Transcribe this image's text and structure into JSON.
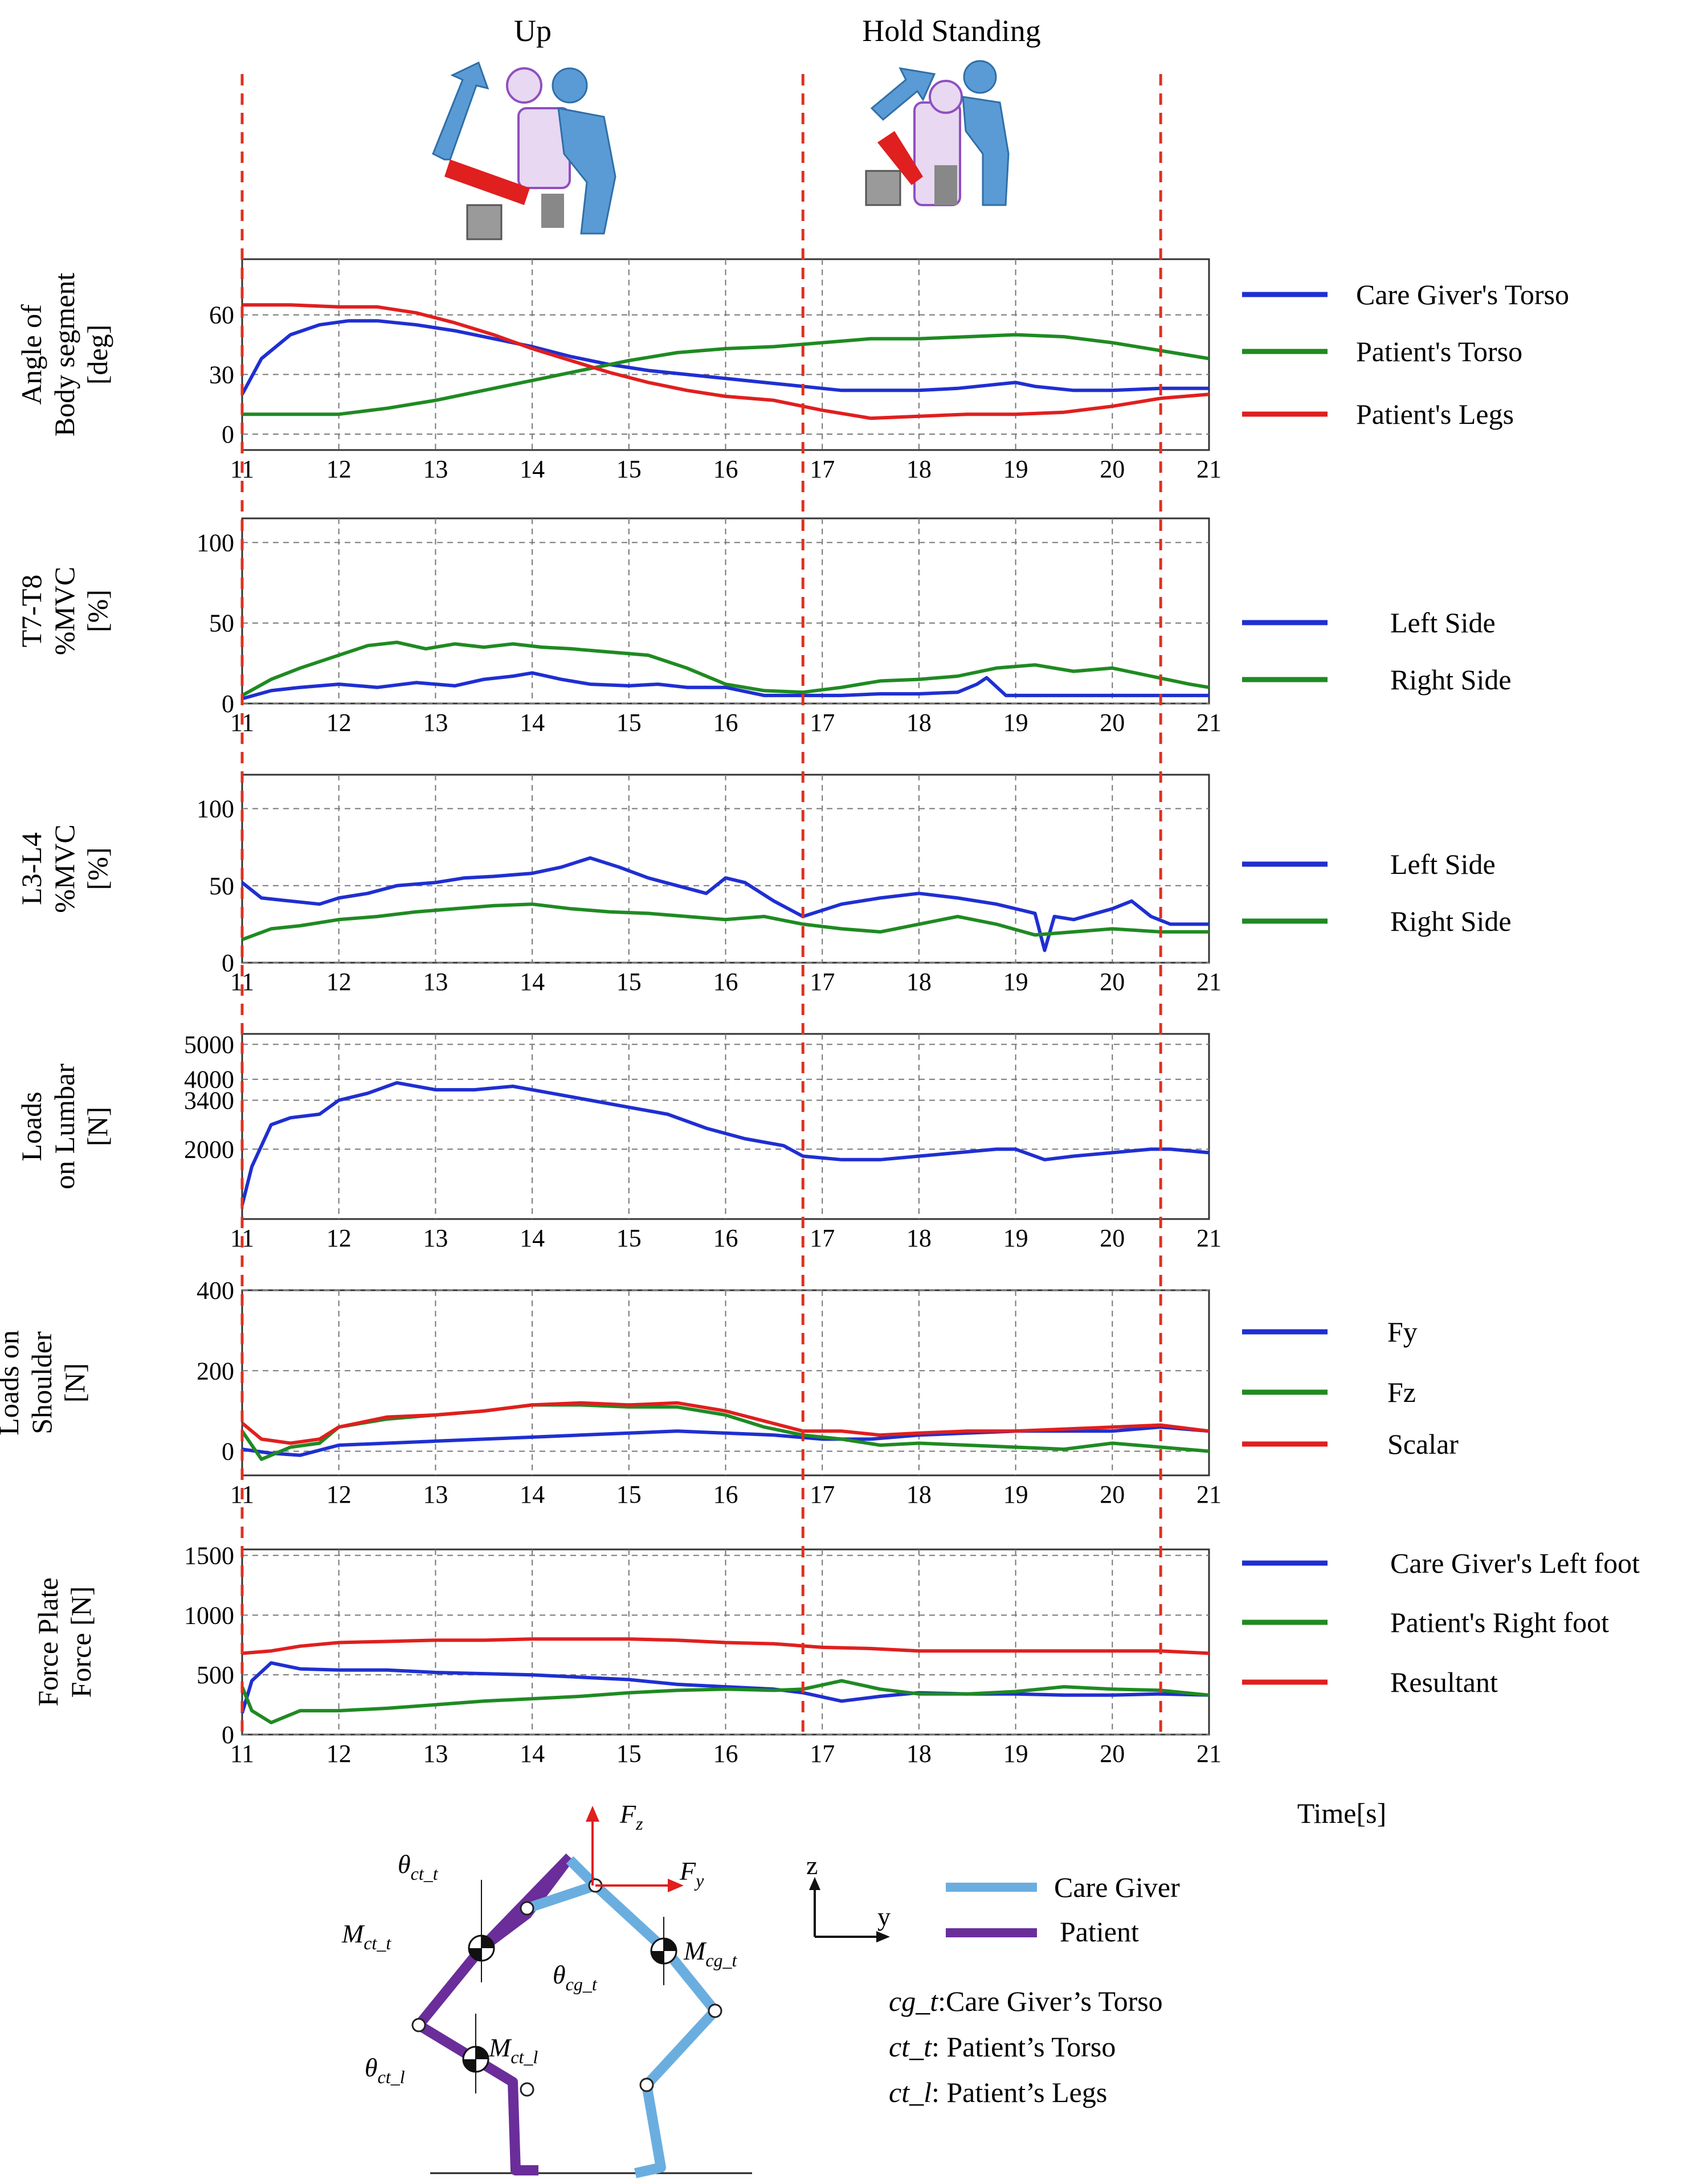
{
  "phases": {
    "up": "Up",
    "hold": "Hold Standing"
  },
  "markers": [
    11.0,
    16.8,
    20.5
  ],
  "x_axis": {
    "min": 11,
    "max": 21,
    "ticks": [
      "11",
      "12",
      "13",
      "14",
      "15",
      "16",
      "17",
      "18",
      "19",
      "20",
      "21"
    ],
    "label": "Time[s]"
  },
  "colors": {
    "blue": "#1f2fd1",
    "green": "#1f8a22",
    "red": "#e01f1f",
    "marker": "#e03020",
    "cg_blue": "#6aaee0",
    "pt_purple": "#6a2d9a"
  },
  "chart_data": [
    {
      "type": "line",
      "id": "angle",
      "ylabel": [
        "Angle of",
        "Body segment",
        "[deg]"
      ],
      "ylim": [
        -8,
        88
      ],
      "yticks": [
        "0",
        "30",
        "60"
      ],
      "yticks_values": [
        0,
        30,
        60
      ],
      "grid": true,
      "series": [
        {
          "name": "Care Giver's Torso",
          "color": "blue",
          "x": [
            11,
            11.2,
            11.5,
            11.8,
            12.1,
            12.4,
            12.8,
            13.2,
            13.6,
            14,
            14.4,
            14.8,
            15.2,
            15.6,
            16,
            16.4,
            16.8,
            17.2,
            17.6,
            18,
            18.4,
            18.8,
            19,
            19.2,
            19.6,
            20,
            20.5,
            21
          ],
          "y": [
            20,
            38,
            50,
            55,
            57,
            57,
            55,
            52,
            48,
            44,
            39,
            35,
            32,
            30,
            28,
            26,
            24,
            22,
            22,
            22,
            23,
            25,
            26,
            24,
            22,
            22,
            23,
            23
          ]
        },
        {
          "name": "Patient's Torso",
          "color": "green",
          "x": [
            11,
            11.5,
            12,
            12.5,
            13,
            13.5,
            14,
            14.5,
            15,
            15.5,
            16,
            16.5,
            17,
            17.5,
            18,
            18.5,
            19,
            19.5,
            20,
            20.5,
            21
          ],
          "y": [
            10,
            10,
            10,
            13,
            17,
            22,
            27,
            32,
            37,
            41,
            43,
            44,
            46,
            48,
            48,
            49,
            50,
            49,
            46,
            42,
            38
          ]
        },
        {
          "name": "Patient's Legs",
          "color": "red",
          "x": [
            11,
            11.5,
            12,
            12.4,
            12.8,
            13.2,
            13.6,
            14,
            14.4,
            14.8,
            15.2,
            15.6,
            16,
            16.5,
            17,
            17.5,
            18,
            18.5,
            19,
            19.5,
            20,
            20.5,
            21
          ],
          "y": [
            65,
            65,
            64,
            64,
            61,
            56,
            50,
            43,
            37,
            31,
            26,
            22,
            19,
            17,
            12,
            8,
            9,
            10,
            10,
            11,
            14,
            18,
            20
          ]
        }
      ]
    },
    {
      "type": "line",
      "id": "t7t8",
      "ylabel": [
        "T7-T8",
        "%MVC",
        "[%]"
      ],
      "ylim": [
        0,
        115
      ],
      "yticks": [
        "0",
        "50",
        "100"
      ],
      "yticks_values": [
        0,
        50,
        100
      ],
      "grid": true,
      "series": [
        {
          "name": "Left Side",
          "color": "blue",
          "x": [
            11,
            11.3,
            11.6,
            12,
            12.4,
            12.8,
            13.2,
            13.5,
            13.8,
            14,
            14.3,
            14.6,
            15,
            15.3,
            15.6,
            16,
            16.4,
            16.8,
            17.2,
            17.6,
            18,
            18.4,
            18.6,
            18.7,
            18.9,
            19.2,
            19.6,
            20,
            20.5,
            21
          ],
          "y": [
            3,
            8,
            10,
            12,
            10,
            13,
            11,
            15,
            17,
            19,
            15,
            12,
            11,
            12,
            10,
            10,
            5,
            5,
            5,
            6,
            6,
            7,
            12,
            16,
            5,
            5,
            5,
            5,
            5,
            5
          ]
        },
        {
          "name": "Right Side",
          "color": "green",
          "x": [
            11,
            11.3,
            11.6,
            12,
            12.3,
            12.6,
            12.9,
            13.2,
            13.5,
            13.8,
            14.1,
            14.4,
            14.8,
            15.2,
            15.6,
            16,
            16.4,
            16.8,
            17.2,
            17.6,
            18,
            18.4,
            18.8,
            19.2,
            19.6,
            20,
            20.4,
            20.8,
            21
          ],
          "y": [
            5,
            15,
            22,
            30,
            36,
            38,
            34,
            37,
            35,
            37,
            35,
            34,
            32,
            30,
            22,
            12,
            8,
            7,
            10,
            14,
            15,
            17,
            22,
            24,
            20,
            22,
            17,
            12,
            10
          ]
        }
      ]
    },
    {
      "type": "line",
      "id": "l3l4",
      "ylabel": [
        "L3-L4",
        "%MVC",
        "[%]"
      ],
      "ylim": [
        0,
        122
      ],
      "yticks": [
        "0",
        "50",
        "100"
      ],
      "yticks_values": [
        0,
        50,
        100
      ],
      "grid": true,
      "series": [
        {
          "name": "Left Side",
          "color": "blue",
          "x": [
            11,
            11.2,
            11.5,
            11.8,
            12,
            12.3,
            12.6,
            13,
            13.3,
            13.6,
            14,
            14.3,
            14.6,
            14.9,
            15.2,
            15.5,
            15.8,
            16,
            16.2,
            16.5,
            16.8,
            17.2,
            17.6,
            18,
            18.4,
            18.8,
            19.2,
            19.3,
            19.4,
            19.6,
            20,
            20.2,
            20.4,
            20.6,
            21
          ],
          "y": [
            52,
            42,
            40,
            38,
            42,
            45,
            50,
            52,
            55,
            56,
            58,
            62,
            68,
            62,
            55,
            50,
            45,
            55,
            52,
            40,
            30,
            38,
            42,
            45,
            42,
            38,
            32,
            8,
            30,
            28,
            35,
            40,
            30,
            25,
            25
          ]
        },
        {
          "name": "Right Side",
          "color": "green",
          "x": [
            11,
            11.3,
            11.6,
            12,
            12.4,
            12.8,
            13.2,
            13.6,
            14,
            14.4,
            14.8,
            15.2,
            15.6,
            16,
            16.4,
            16.8,
            17.2,
            17.6,
            18,
            18.4,
            18.8,
            19.2,
            19.6,
            20,
            20.5,
            21
          ],
          "y": [
            15,
            22,
            24,
            28,
            30,
            33,
            35,
            37,
            38,
            35,
            33,
            32,
            30,
            28,
            30,
            25,
            22,
            20,
            25,
            30,
            25,
            18,
            20,
            22,
            20,
            20
          ]
        }
      ]
    },
    {
      "type": "line",
      "id": "lumbar",
      "ylabel": [
        "Loads",
        "on Lumbar",
        "[N]"
      ],
      "ylim": [
        0,
        5300
      ],
      "yticks": [
        "2000",
        "3400",
        "4000",
        "5000"
      ],
      "yticks_values": [
        2000,
        3400,
        4000,
        5000
      ],
      "grid": true,
      "series": [
        {
          "name": "",
          "color": "blue",
          "x": [
            11,
            11.1,
            11.3,
            11.5,
            11.8,
            12,
            12.3,
            12.6,
            13,
            13.4,
            13.8,
            14.2,
            14.6,
            15,
            15.4,
            15.8,
            16.2,
            16.6,
            16.8,
            17.2,
            17.6,
            18,
            18.4,
            18.8,
            19,
            19.3,
            19.6,
            20,
            20.4,
            20.6,
            21
          ],
          "y": [
            400,
            1500,
            2700,
            2900,
            3000,
            3400,
            3600,
            3900,
            3700,
            3700,
            3800,
            3600,
            3400,
            3200,
            3000,
            2600,
            2300,
            2100,
            1800,
            1700,
            1700,
            1800,
            1900,
            2000,
            2000,
            1700,
            1800,
            1900,
            2000,
            2000,
            1900
          ]
        }
      ]
    },
    {
      "type": "line",
      "id": "shoulder",
      "ylabel": [
        "Loads on",
        "Shoulder",
        "[N]"
      ],
      "ylim": [
        -60,
        400
      ],
      "yticks": [
        "0",
        "200",
        "400"
      ],
      "yticks_values": [
        0,
        200,
        400
      ],
      "grid": true,
      "series": [
        {
          "name": "Fy",
          "color": "blue",
          "x": [
            11,
            11.3,
            11.6,
            12,
            12.5,
            13,
            13.5,
            14,
            14.5,
            15,
            15.5,
            16,
            16.5,
            17,
            17.5,
            18,
            18.5,
            19,
            19.5,
            20,
            20.5,
            21
          ],
          "y": [
            5,
            -5,
            -10,
            15,
            20,
            25,
            30,
            35,
            40,
            45,
            50,
            45,
            40,
            30,
            30,
            40,
            45,
            50,
            50,
            50,
            60,
            50
          ]
        },
        {
          "name": "Fz",
          "color": "green",
          "x": [
            11,
            11.2,
            11.5,
            11.8,
            12,
            12.5,
            13,
            13.5,
            14,
            14.5,
            15,
            15.5,
            16,
            16.4,
            16.8,
            17.2,
            17.6,
            18,
            18.5,
            19,
            19.5,
            20,
            20.5,
            21
          ],
          "y": [
            50,
            -20,
            10,
            20,
            60,
            80,
            90,
            100,
            115,
            115,
            110,
            110,
            90,
            60,
            40,
            30,
            15,
            20,
            15,
            10,
            5,
            20,
            10,
            0
          ]
        },
        {
          "name": "Scalar",
          "color": "red",
          "x": [
            11,
            11.2,
            11.5,
            11.8,
            12,
            12.5,
            13,
            13.5,
            14,
            14.5,
            15,
            15.5,
            16,
            16.4,
            16.8,
            17.2,
            17.6,
            18,
            18.5,
            19,
            19.5,
            20,
            20.5,
            21
          ],
          "y": [
            70,
            30,
            20,
            30,
            60,
            85,
            90,
            100,
            115,
            120,
            115,
            120,
            100,
            75,
            50,
            50,
            40,
            45,
            50,
            50,
            55,
            60,
            65,
            50
          ]
        }
      ]
    },
    {
      "type": "line",
      "id": "forceplate",
      "ylabel": [
        "Force Plate",
        "Force [N]"
      ],
      "ylim": [
        0,
        1550
      ],
      "yticks": [
        "0",
        "500",
        "1000",
        "1500"
      ],
      "yticks_values": [
        0,
        500,
        1000,
        1500
      ],
      "grid": true,
      "series": [
        {
          "name": "Care Giver's Left foot",
          "color": "blue",
          "x": [
            11,
            11.1,
            11.3,
            11.6,
            12,
            12.5,
            13,
            13.5,
            14,
            14.5,
            15,
            15.5,
            16,
            16.5,
            16.8,
            17.2,
            17.6,
            18,
            18.5,
            19,
            19.5,
            20,
            20.5,
            21
          ],
          "y": [
            180,
            450,
            600,
            550,
            540,
            540,
            520,
            510,
            500,
            480,
            460,
            420,
            400,
            380,
            350,
            280,
            320,
            350,
            340,
            340,
            330,
            330,
            340,
            330
          ]
        },
        {
          "name": "Patient's Right foot",
          "color": "green",
          "x": [
            11,
            11.1,
            11.3,
            11.6,
            12,
            12.5,
            13,
            13.5,
            14,
            14.5,
            15,
            15.5,
            16,
            16.5,
            16.8,
            17.2,
            17.6,
            18,
            18.5,
            19,
            19.5,
            20,
            20.5,
            21
          ],
          "y": [
            400,
            200,
            100,
            200,
            200,
            220,
            250,
            280,
            300,
            320,
            350,
            370,
            380,
            370,
            380,
            450,
            380,
            340,
            340,
            360,
            400,
            380,
            370,
            330
          ]
        },
        {
          "name": "Resultant",
          "color": "red",
          "x": [
            11,
            11.3,
            11.6,
            12,
            12.5,
            13,
            13.5,
            14,
            14.5,
            15,
            15.5,
            16,
            16.5,
            17,
            17.5,
            18,
            18.5,
            19,
            19.5,
            20,
            20.5,
            21
          ],
          "y": [
            680,
            700,
            740,
            770,
            780,
            790,
            790,
            800,
            800,
            800,
            790,
            770,
            760,
            730,
            720,
            700,
            700,
            700,
            700,
            700,
            700,
            680
          ]
        }
      ]
    }
  ],
  "diagram": {
    "fz": "F",
    "fz_sub": "z",
    "fy": "F",
    "fy_sub": "y",
    "theta_ct_t": "θ",
    "theta_ct_t_sub": "ct_t",
    "m_ct_t": "M",
    "m_ct_t_sub": "ct_t",
    "theta_cg_t": "θ",
    "theta_cg_t_sub": "cg_t",
    "m_cg_t": "M",
    "m_cg_t_sub": "cg_t",
    "m_ct_l": "M",
    "m_ct_l_sub": "ct_l",
    "theta_ct_l": "θ",
    "theta_ct_l_sub": "ct_l",
    "axis_z": "z",
    "axis_y": "y",
    "legend_caregiver": "Care Giver",
    "legend_patient": "Patient",
    "defs": [
      {
        "abbr": "cg_t",
        "text": ":Care Giver’s Torso"
      },
      {
        "abbr": "ct_t",
        "text": ": Patient’s  Torso"
      },
      {
        "abbr": "ct_l",
        "text": ": Patient’s  Legs"
      }
    ]
  },
  "icons": {
    "up": "caregiver-lifting-patient-icon",
    "hold": "caregiver-holding-standing-patient-icon"
  }
}
